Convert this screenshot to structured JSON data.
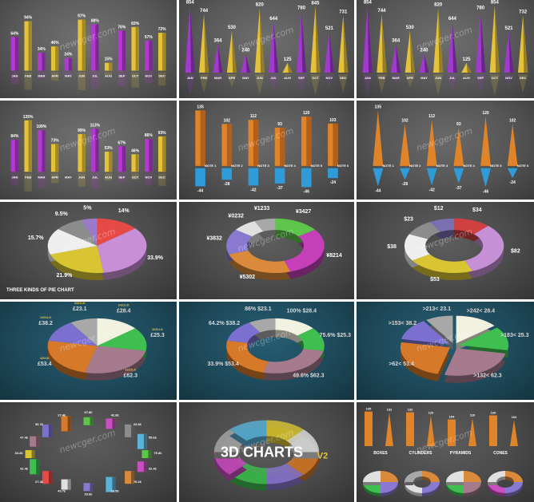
{
  "watermark": "newcger.com",
  "cells": [
    {
      "kind": "bars",
      "background": "#5b5b5b",
      "categories": [
        "JAN",
        "FEB",
        "MAR",
        "APR",
        "MAY",
        "JUN",
        "JUL",
        "AUG",
        "SEP",
        "OCT",
        "NOV",
        "DEC"
      ],
      "values": [
        "64%",
        "94%",
        "34%",
        "46%",
        "24%",
        "97%",
        "88%",
        "15%",
        "76%",
        "83%",
        "57%",
        "72%"
      ],
      "colors": [
        "#b23ad0",
        "#e6c23b",
        "#b23ad0",
        "#e6c23b",
        "#b23ad0",
        "#e6c23b",
        "#b23ad0",
        "#e6c23b",
        "#b23ad0",
        "#e6c23b",
        "#b23ad0",
        "#e6c23b"
      ]
    },
    {
      "kind": "cones",
      "background": "#585858",
      "categories": [
        "JAN",
        "FEB",
        "MAR",
        "APR",
        "MAY",
        "JUN",
        "JUL",
        "AUG",
        "SEP",
        "OCT",
        "NOV",
        "DEC"
      ],
      "values": [
        "854",
        "744",
        "364",
        "530",
        "240",
        "820",
        "644",
        "125",
        "780",
        "845",
        "521",
        "731"
      ],
      "colors": [
        "#a23ad0",
        "#e6c23b",
        "#a23ad0",
        "#e6c23b",
        "#a23ad0",
        "#e6c23b",
        "#a23ad0",
        "#e6c23b",
        "#a23ad0",
        "#e6c23b",
        "#a23ad0",
        "#e6c23b"
      ]
    },
    {
      "kind": "cones",
      "background": "#585858",
      "categories": [
        "JAN",
        "FEB",
        "MAR",
        "APR",
        "MAY",
        "JUN",
        "JUL",
        "AUG",
        "SEP",
        "OCT",
        "NOV",
        "DEC"
      ],
      "values": [
        "854",
        "744",
        "364",
        "530",
        "240",
        "820",
        "644",
        "125",
        "780",
        "854",
        "521",
        "732"
      ],
      "colors": [
        "#a23ad0",
        "#e6c23b",
        "#a23ad0",
        "#e6c23b",
        "#a23ad0",
        "#e6c23b",
        "#a23ad0",
        "#e6c23b",
        "#a23ad0",
        "#e6c23b",
        "#a23ad0",
        "#e6c23b"
      ]
    },
    {
      "kind": "bars",
      "background": "#5a5a5a",
      "categories": [
        "JAN",
        "FEB",
        "MAR",
        "APR",
        "MAY",
        "JUN",
        "JUL",
        "AUG",
        "SEP",
        "OCT",
        "NOV",
        "DEC"
      ],
      "values": [
        "84%",
        "135%",
        "109%",
        "73%",
        "",
        "99%",
        "113%",
        "53%",
        "67%",
        "46%",
        "86%",
        "93%"
      ],
      "colors": [
        "#b23ad0",
        "#e6c23b",
        "#b23ad0",
        "#e6c23b",
        "#b23ad0",
        "#e6c23b",
        "#b23ad0",
        "#e6c23b",
        "#b23ad0",
        "#e6c23b",
        "#b23ad0",
        "#e6c23b"
      ]
    },
    {
      "kind": "posneg-bars",
      "background": "#555555",
      "categories": [
        "NOTE 1",
        "NOTE 2",
        "NOTE 3",
        "NOTE 4",
        "NOTE 5",
        "NOTE 6"
      ],
      "positive": [
        "135",
        "102",
        "112",
        "93",
        "120",
        "103"
      ],
      "negative": [
        "-44",
        "-28",
        "-42",
        "-37",
        "-46",
        "-24"
      ]
    },
    {
      "kind": "posneg-cones",
      "background": "#555555",
      "categories": [
        "NOTE 1",
        "NOTE 2",
        "NOTE 3",
        "NOTE 4",
        "NOTE 5",
        "NOTE 6"
      ],
      "positive": [
        "135",
        "102",
        "112",
        "93",
        "120",
        "102"
      ],
      "negative": [
        "-44",
        "-28",
        "-42",
        "-37",
        "-46",
        "-24"
      ]
    },
    {
      "kind": "pie",
      "background": "#4b4b4b",
      "slices": [
        {
          "label": "14%",
          "value": 14,
          "color": "#e64a44"
        },
        {
          "label": "33.9%",
          "value": 33.9,
          "color": "#c98fd6"
        },
        {
          "label": "21.9%",
          "value": 21.9,
          "color": "#d9c531"
        },
        {
          "label": "15.7%",
          "value": 15.7,
          "color": "#eeeeee"
        },
        {
          "label": "9.5%",
          "value": 9.5,
          "color": "#8c8c8c"
        },
        {
          "label": "5%",
          "value": 5,
          "color": "#9b7bc9"
        }
      ],
      "caption": "THREE KINDS OF PIE CHART"
    },
    {
      "kind": "ring",
      "background": "#4b4b4b",
      "slices": [
        {
          "label": "¥3427",
          "value": 15,
          "color": "#5dc54a"
        },
        {
          "label": "¥8214",
          "value": 30,
          "color": "#c43fb8"
        },
        {
          "label": "¥5302",
          "value": 25,
          "color": "#d98a3a"
        },
        {
          "label": "¥3832",
          "value": 15,
          "color": "#8a79d0"
        },
        {
          "label": "¥0232",
          "value": 8,
          "color": "#e0e0e0"
        },
        {
          "label": "¥1233",
          "value": 7,
          "color": "#a8a8a8"
        }
      ]
    },
    {
      "kind": "ring",
      "background": "#4b4b4b",
      "slices": [
        {
          "label": "$34",
          "value": 12,
          "color": "#d04040"
        },
        {
          "label": "$82",
          "value": 32,
          "color": "#c690d6"
        },
        {
          "label": "$53",
          "value": 22,
          "color": "#d9c531"
        },
        {
          "label": "$38",
          "value": 16,
          "color": "#eeeeee"
        },
        {
          "label": "$23",
          "value": 10,
          "color": "#8c8c8c"
        },
        {
          "label": "$12",
          "value": 8,
          "color": "#7a6fb0"
        }
      ]
    },
    {
      "kind": "pie",
      "background": "#1e4a5b",
      "slices": [
        {
          "label": "£28.4",
          "value": 14,
          "color": "#f2f2e0",
          "tag": "2421LK"
        },
        {
          "label": "£25.3",
          "value": 14,
          "color": "#3fbf50",
          "tag": "1631LK"
        },
        {
          "label": "£62.3",
          "value": 26,
          "color": "#a57a8c",
          "tag": "1321LK"
        },
        {
          "label": "£53.4",
          "value": 24,
          "color": "#d67a2a",
          "tag": "4201K"
        },
        {
          "label": "£38.2",
          "value": 13,
          "color": "#7b70d0",
          "tag": "1531LK"
        },
        {
          "label": "£23.1",
          "value": 9,
          "color": "#a8a8a8",
          "tag": "2321LK"
        }
      ]
    },
    {
      "kind": "ring",
      "background": "#1e4a5b",
      "slices": [
        {
          "label": "100% $28.4",
          "value": 14,
          "color": "#f2f2e0"
        },
        {
          "label": "75.6% $25.3",
          "value": 14,
          "color": "#3fbf50"
        },
        {
          "label": "49.6% $62.3",
          "value": 26,
          "color": "#a57a8c"
        },
        {
          "label": "33.9% $53.4",
          "value": 24,
          "color": "#d67a2a"
        },
        {
          "label": "64.2% $38.2",
          "value": 13,
          "color": "#7b70d0"
        },
        {
          "label": "86% $23.1",
          "value": 9,
          "color": "#a8a8a8"
        }
      ]
    },
    {
      "kind": "exploded",
      "background": "#1e4a5b",
      "slices": [
        {
          "label": ">242< 28.4",
          "value": 14,
          "color": "#f2f2e0"
        },
        {
          "label": ">183< 25.3",
          "value": 14,
          "color": "#3fbf50"
        },
        {
          "label": ">132< 62.3",
          "value": 26,
          "color": "#a57a8c"
        },
        {
          "label": ">62< 53.4",
          "value": 24,
          "color": "#d67a2a"
        },
        {
          "label": ">153< 38.2",
          "value": 13,
          "color": "#7b70d0"
        },
        {
          "label": ">213< 23.1",
          "value": 9,
          "color": "#a8a8a8"
        }
      ]
    },
    {
      "kind": "scatter-ring",
      "background": "#4a4a4a",
      "labels": [
        "75.3£",
        "32.4£",
        "76.2£",
        "26.5£",
        "33.6£",
        "42.7£",
        "27.4£",
        "32.4£",
        "34.3£",
        "47.4£",
        "30.7£",
        "27.4£",
        "67.8£",
        "42.8£",
        "23.6£",
        "55.6£"
      ],
      "colors": [
        "#5dc54a",
        "#c94fc0",
        "#d98a3a",
        "#5ab3d8",
        "#8a79d0",
        "#e0e0e0",
        "#e64a44",
        "#3fbf50",
        "#d9c531",
        "#a57a8c",
        "#7b70d0",
        "#d67a2a",
        "#5dc54a",
        "#c94fc0",
        "#8c8c8c",
        "#5ab3d8"
      ]
    },
    {
      "kind": "title-card",
      "background": "#4a4a4a",
      "title": "3D CHARTS",
      "version": "V2"
    },
    {
      "kind": "summary",
      "background": "#4a4a4a",
      "categories": [
        "BOXES",
        "CYLINDERS",
        "PYRAMIDS",
        "CONES"
      ],
      "values": [
        "135",
        "132",
        "132",
        "120",
        "104",
        "110",
        "120",
        "102"
      ]
    }
  ]
}
